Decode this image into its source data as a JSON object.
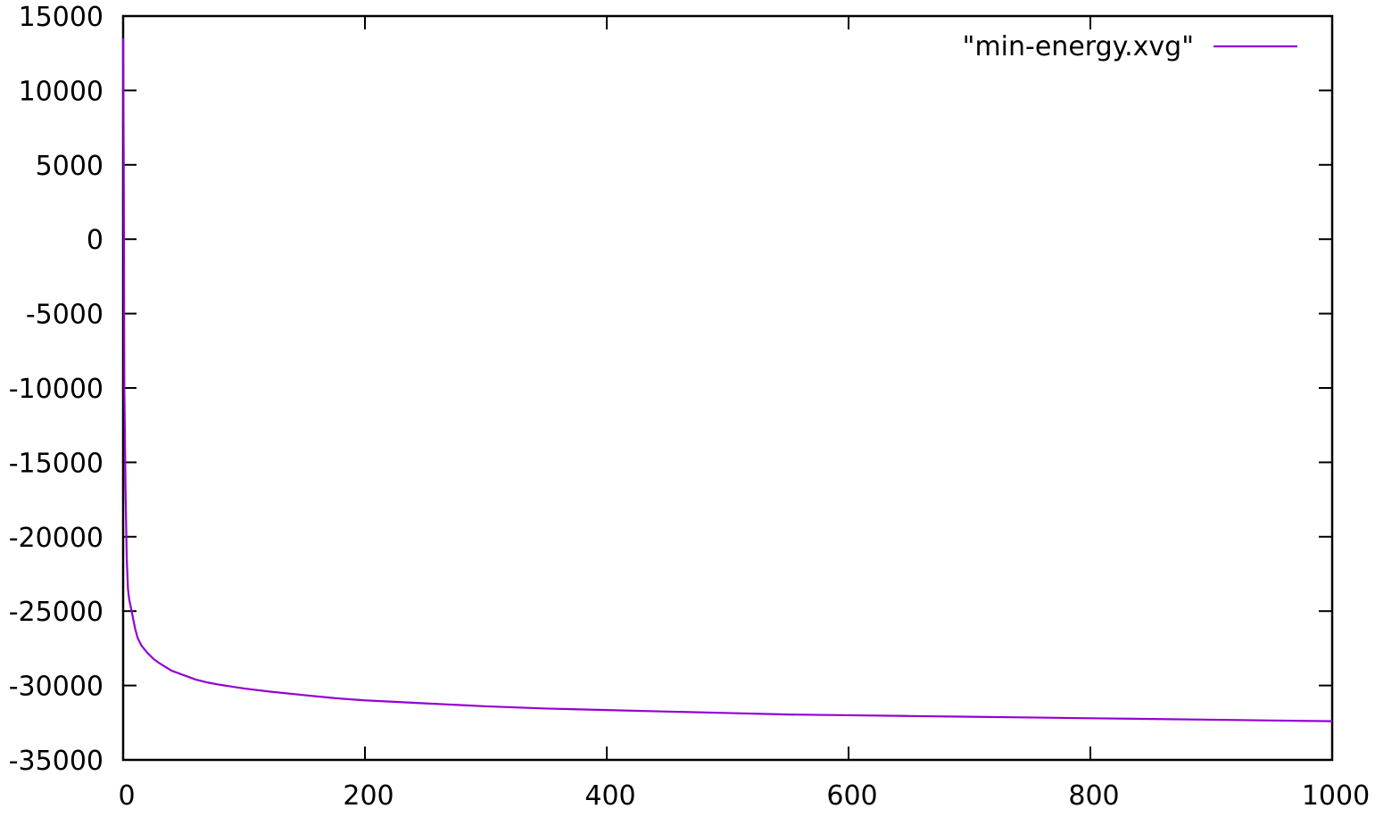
{
  "chart_data": {
    "type": "line",
    "title": "",
    "xlabel": "",
    "ylabel": "",
    "xlim": [
      0,
      1000
    ],
    "ylim": [
      -35000,
      15000
    ],
    "x_ticks": [
      0,
      200,
      400,
      600,
      800,
      1000
    ],
    "x_tick_labels": [
      "0",
      "200",
      "400",
      "600",
      "800",
      "1000"
    ],
    "y_ticks": [
      15000,
      10000,
      5000,
      0,
      -5000,
      -10000,
      -15000,
      -20000,
      -25000,
      -30000,
      -35000
    ],
    "y_tick_labels": [
      "15000",
      "10000",
      "5000",
      "0",
      "-5000",
      "-10000",
      "-15000",
      "-20000",
      "-25000",
      "-30000",
      "-35000"
    ],
    "grid": false,
    "legend_position": "top-right",
    "series": [
      {
        "name": "\"min-energy.xvg\"",
        "color": "#9400d3",
        "x": [
          0,
          0.5,
          1,
          2,
          3,
          4,
          5,
          6,
          8,
          10,
          12,
          15,
          20,
          25,
          30,
          40,
          50,
          60,
          70,
          80,
          100,
          120,
          150,
          175,
          200,
          250,
          300,
          350,
          400,
          450,
          500,
          550,
          600,
          650,
          700,
          750,
          800,
          850,
          900,
          950,
          1000
        ],
        "y": [
          13500,
          5000,
          -10000,
          -17000,
          -21500,
          -23500,
          -24200,
          -24600,
          -25400,
          -26200,
          -26800,
          -27300,
          -27800,
          -28200,
          -28500,
          -29000,
          -29300,
          -29600,
          -29800,
          -29950,
          -30200,
          -30400,
          -30650,
          -30850,
          -31000,
          -31200,
          -31400,
          -31550,
          -31650,
          -31750,
          -31850,
          -31950,
          -32000,
          -32050,
          -32100,
          -32150,
          -32200,
          -32250,
          -32300,
          -32350,
          -32400
        ]
      }
    ]
  }
}
